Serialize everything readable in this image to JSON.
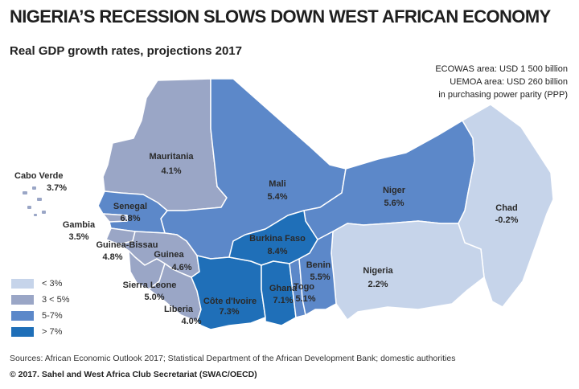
{
  "title": "NIGERIA’S RECESSION SLOWS DOWN WEST AFRICAN ECONOMY",
  "subtitle": "Real GDP growth rates, projections 2017",
  "economy": {
    "ecowas": "ECOWAS area: USD 1 500 billion",
    "uemoa": "UEMOA area: USD 260 billion",
    "ppp": "in purchasing power parity (PPP)"
  },
  "colors": {
    "lt3": "#c6d4ea",
    "c3to5": "#9aa6c6",
    "c5to7": "#5c88c9",
    "gt7": "#1f6fb8",
    "border": "#ffffff"
  },
  "legend": [
    {
      "label": "< 3%",
      "color": "#c6d4ea"
    },
    {
      "label": "3 < 5%",
      "color": "#9aa6c6"
    },
    {
      "label": "5-7%",
      "color": "#5c88c9"
    },
    {
      "label": "> 7%",
      "color": "#1f6fb8"
    }
  ],
  "countries": {
    "mauritania": {
      "name": "Mauritania",
      "value": "4.1%"
    },
    "mali": {
      "name": "Mali",
      "value": "5.4%"
    },
    "niger": {
      "name": "Niger",
      "value": "5.6%"
    },
    "chad": {
      "name": "Chad",
      "value": "-0.2%"
    },
    "nigeria": {
      "name": "Nigeria",
      "value": "2.2%"
    },
    "senegal": {
      "name": "Senegal",
      "value": "6.8%"
    },
    "gambia": {
      "name": "Gambia",
      "value": "3.5%"
    },
    "guinea_bissau": {
      "name": "Guinea-Bissau",
      "value": "4.8%"
    },
    "guinea": {
      "name": "Guinea",
      "value": "4.6%"
    },
    "sierra_leone": {
      "name": "Sierra Leone",
      "value": "5.0%"
    },
    "liberia": {
      "name": "Liberia",
      "value": "4.0%"
    },
    "cote_divoire": {
      "name": "Côte d'Ivoire",
      "value": "7.3%"
    },
    "burkina_faso": {
      "name": "Burkina Faso",
      "value": "8.4%"
    },
    "ghana": {
      "name": "Ghana",
      "value": "7.1%"
    },
    "togo": {
      "name": "Togo",
      "value": "5.1%"
    },
    "benin": {
      "name": "Benin",
      "value": "5.5%"
    },
    "cabo_verde": {
      "name": "Cabo Verde",
      "value": "3.7%"
    }
  },
  "sources": "Sources: African Economic Outlook 2017; Statistical Department of the African Development Bank; domestic authorities",
  "copyright": "© 2017. Sahel and West Africa Club Secretariat (SWAC/OECD)"
}
